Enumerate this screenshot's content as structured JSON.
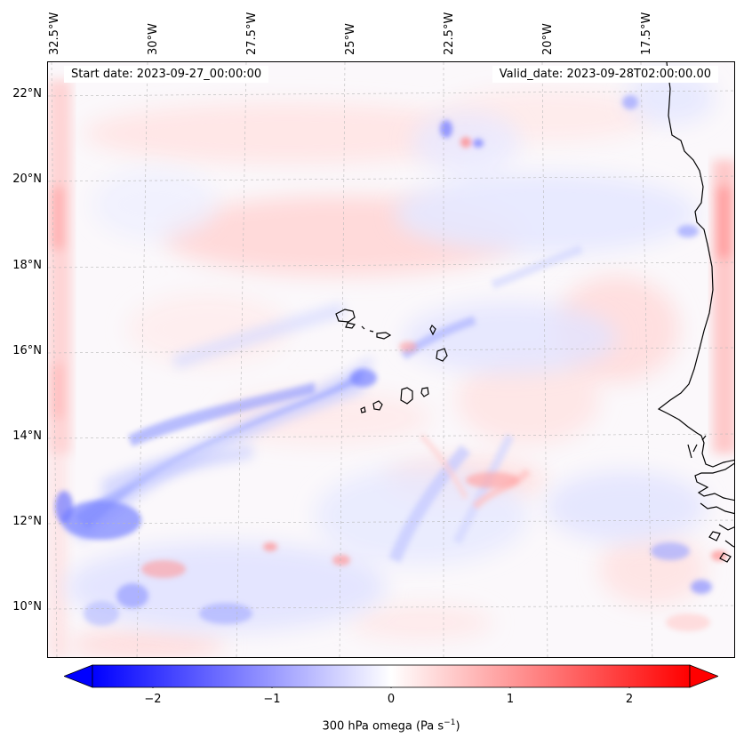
{
  "map": {
    "start_date": "Start date: 2023-09-27_00:00:00",
    "valid_date": "Valid_date: 2023-09-28T02:00:00.00",
    "lat_labels": [
      "22°N",
      "20°N",
      "18°N",
      "16°N",
      "14°N",
      "12°N",
      "10°N"
    ],
    "lon_labels": [
      "32.5°W",
      "30°W",
      "27.5°W",
      "25°W",
      "22.5°W",
      "20°W",
      "17.5°W"
    ],
    "variable": "300 hPa omega",
    "colormap": "bwr",
    "features": [
      "coastline-west-africa",
      "cape-verde-islands",
      "graticule-gridlines"
    ]
  },
  "colorbar": {
    "ticks": [
      "−2",
      "−1",
      "0",
      "1",
      "2"
    ],
    "label_main": "300 hPa omega (Pa s",
    "label_exp": "−1",
    "label_close": ")",
    "min": -2.7,
    "max": 2.7,
    "colors": {
      "negative": "#0000ff",
      "neutral": "#ffffff",
      "positive": "#ff0000"
    }
  }
}
